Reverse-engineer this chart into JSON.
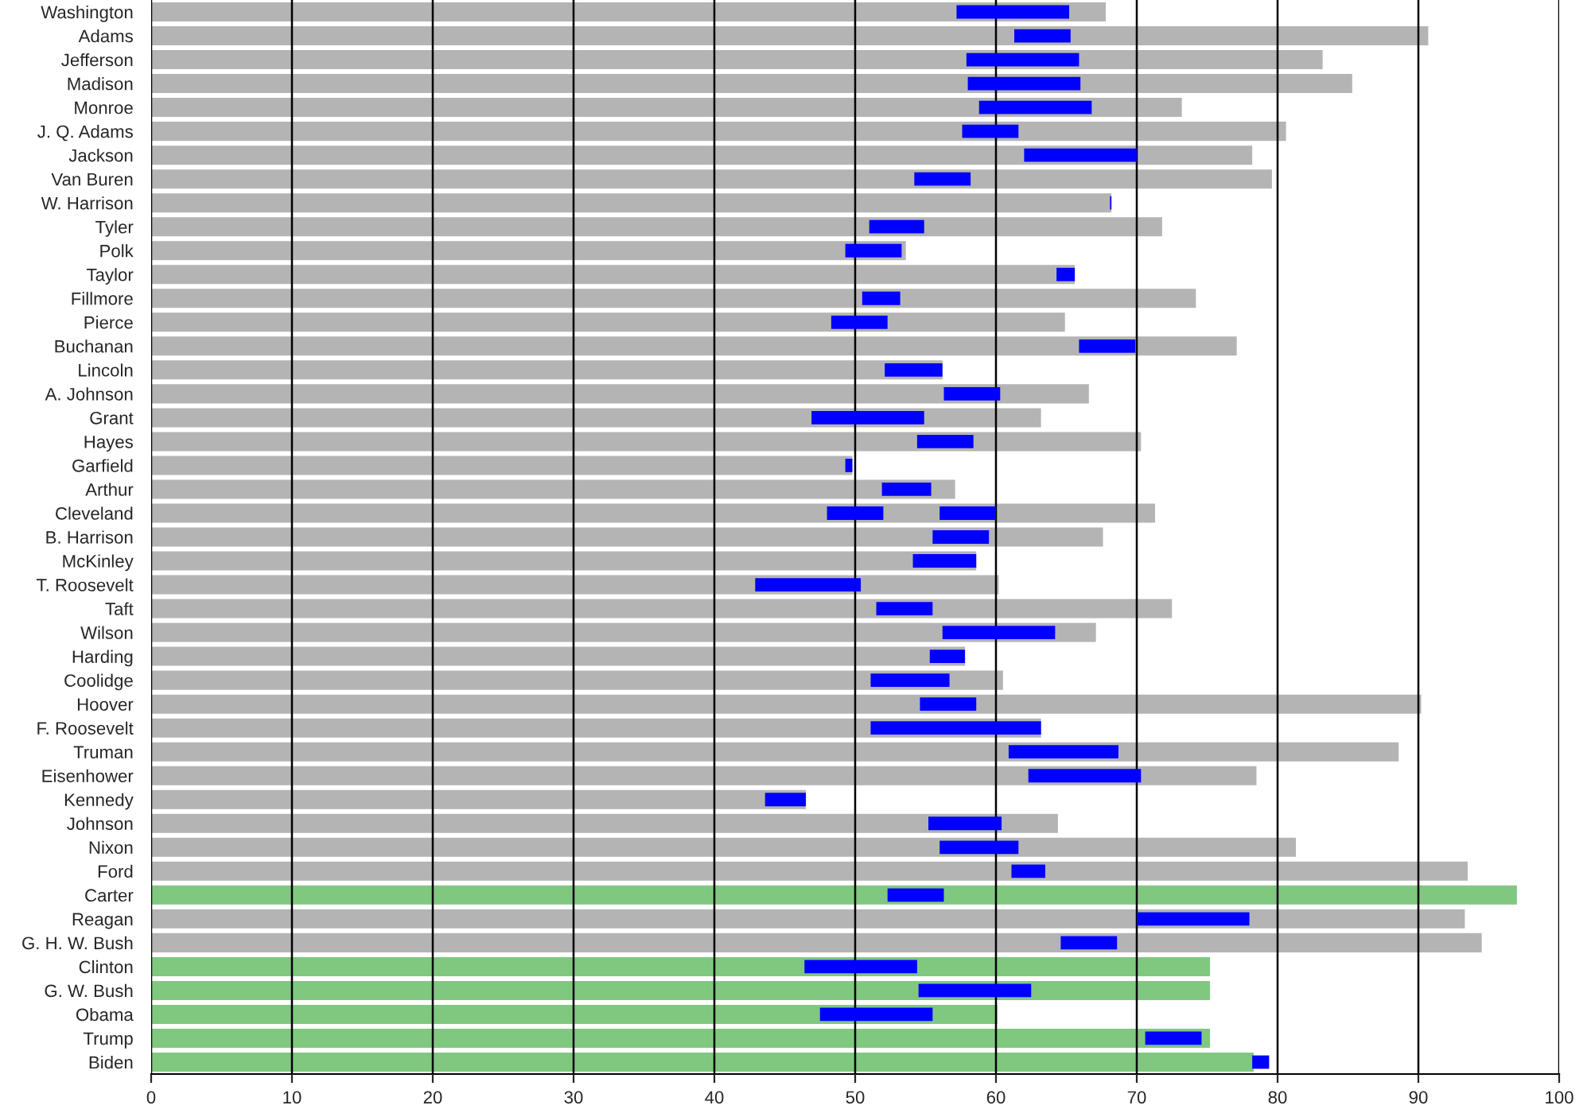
{
  "chart_data": {
    "type": "bar",
    "orientation": "horizontal",
    "categories": [
      "Washington",
      "Adams",
      "Jefferson",
      "Madison",
      "Monroe",
      "J. Q. Adams",
      "Jackson",
      "Van Buren",
      "W. Harrison",
      "Tyler",
      "Polk",
      "Taylor",
      "Fillmore",
      "Pierce",
      "Buchanan",
      "Lincoln",
      "A. Johnson",
      "Grant",
      "Hayes",
      "Garfield",
      "Arthur",
      "Cleveland",
      "B. Harrison",
      "McKinley",
      "T. Roosevelt",
      "Taft",
      "Wilson",
      "Harding",
      "Coolidge",
      "Hoover",
      "F. Roosevelt",
      "Truman",
      "Eisenhower",
      "Kennedy",
      "Johnson",
      "Nixon",
      "Ford",
      "Carter",
      "Reagan",
      "G. H. W. Bush",
      "Clinton",
      "G. W. Bush",
      "Obama",
      "Trump",
      "Biden"
    ],
    "series": [
      {
        "colors": [
          "#b4b4b4",
          "#b4b4b4",
          "#b4b4b4",
          "#b4b4b4",
          "#b4b4b4",
          "#b4b4b4",
          "#b4b4b4",
          "#b4b4b4",
          "#b4b4b4",
          "#b4b4b4",
          "#b4b4b4",
          "#b4b4b4",
          "#b4b4b4",
          "#b4b4b4",
          "#b4b4b4",
          "#b4b4b4",
          "#b4b4b4",
          "#b4b4b4",
          "#b4b4b4",
          "#b4b4b4",
          "#b4b4b4",
          "#b4b4b4",
          "#b4b4b4",
          "#b4b4b4",
          "#b4b4b4",
          "#b4b4b4",
          "#b4b4b4",
          "#b4b4b4",
          "#b4b4b4",
          "#b4b4b4",
          "#b4b4b4",
          "#b4b4b4",
          "#b4b4b4",
          "#b4b4b4",
          "#b4b4b4",
          "#b4b4b4",
          "#b4b4b4",
          "#80c880",
          "#b4b4b4",
          "#b4b4b4",
          "#80c880",
          "#80c880",
          "#80c880",
          "#80c880",
          "#80c880"
        ],
        "values": [
          67.8,
          90.7,
          83.2,
          85.3,
          73.2,
          80.6,
          78.2,
          79.6,
          68.2,
          71.8,
          53.6,
          65.6,
          74.2,
          64.9,
          77.1,
          56.2,
          66.6,
          63.2,
          70.3,
          49.8,
          57.1,
          71.3,
          67.6,
          58.6,
          60.2,
          72.5,
          67.1,
          57.8,
          60.5,
          90.2,
          63.2,
          88.6,
          78.5,
          46.5,
          64.4,
          81.3,
          93.5,
          97.0,
          93.3,
          94.5,
          75.2,
          75.2,
          60.1,
          75.2,
          78.3
        ]
      },
      {
        "color": "#0000ff",
        "base": [
          57.2,
          61.3,
          57.9,
          58.0,
          58.8,
          57.6,
          62.0,
          54.2,
          68.1,
          51.0,
          49.3,
          64.3,
          50.5,
          48.3,
          65.9,
          52.1,
          56.3,
          46.9,
          54.4,
          49.3,
          51.9,
          48.0,
          55.5,
          54.1,
          42.9,
          51.5,
          56.2,
          55.3,
          51.1,
          54.6,
          51.1,
          60.9,
          62.3,
          43.6,
          55.2,
          56.0,
          61.1,
          52.3,
          70.0,
          64.6,
          46.4,
          54.5,
          47.5,
          70.6,
          78.2
        ],
        "values": [
          8.0,
          4.0,
          8.0,
          8.0,
          8.0,
          4.0,
          8.0,
          4.0,
          0.1,
          3.9,
          4.0,
          1.3,
          2.7,
          4.0,
          4.0,
          4.1,
          4.0,
          8.0,
          4.0,
          0.5,
          3.5,
          4.0,
          4.0,
          4.5,
          7.5,
          4.0,
          8.0,
          2.5,
          5.6,
          4.0,
          12.1,
          7.8,
          8.0,
          2.9,
          5.2,
          5.6,
          2.4,
          4.0,
          8.0,
          4.0,
          8.0,
          8.0,
          8.0,
          4.0,
          1.2
        ]
      },
      {
        "color": "#0000ff",
        "base": [
          null,
          null,
          null,
          null,
          null,
          null,
          null,
          null,
          null,
          null,
          null,
          null,
          null,
          null,
          null,
          null,
          null,
          null,
          null,
          null,
          null,
          56.0,
          null,
          null,
          null,
          null,
          null,
          null,
          null,
          null,
          null,
          null,
          null,
          null,
          null,
          null,
          null,
          null,
          null,
          null,
          null,
          null,
          null,
          null,
          null
        ],
        "values": [
          null,
          null,
          null,
          null,
          null,
          null,
          null,
          null,
          null,
          null,
          null,
          null,
          null,
          null,
          null,
          null,
          null,
          null,
          null,
          null,
          null,
          4.0,
          null,
          null,
          null,
          null,
          null,
          null,
          null,
          null,
          null,
          null,
          null,
          null,
          null,
          null,
          null,
          null,
          null,
          null,
          null,
          null,
          null,
          null,
          null
        ]
      }
    ],
    "xlim": [
      0,
      100
    ],
    "xticks": [
      0,
      10,
      20,
      30,
      40,
      50,
      60,
      70,
      80,
      90,
      100
    ],
    "grid": "x",
    "legend": false
  }
}
